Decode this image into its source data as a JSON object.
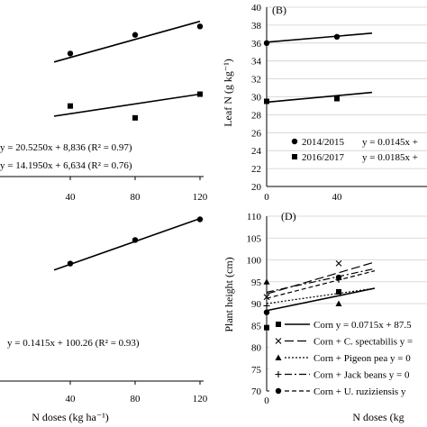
{
  "colors": {
    "ink": "#000000",
    "background": "#ffffff"
  },
  "chart_data": [
    {
      "panel": "top-left",
      "type": "scatter",
      "title": "",
      "xlabel": "",
      "ylabel": "",
      "xlim": [
        0,
        120
      ],
      "ylim": [
        0,
        40
      ],
      "x_ticks": [
        40,
        80,
        120
      ],
      "grid": false,
      "series": [
        {
          "marker": "circle",
          "x": [
            40,
            80,
            120
          ],
          "y": [
            37.0,
            38.1,
            38.6
          ],
          "fit": {
            "x": [
              30,
              120
            ],
            "y": [
              36.5,
              38.9
            ]
          }
        },
        {
          "marker": "square",
          "x": [
            40,
            80,
            120
          ],
          "y": [
            33.9,
            33.2,
            34.6
          ],
          "fit": {
            "x": [
              30,
              120
            ],
            "y": [
              33.3,
              34.6
            ]
          }
        }
      ],
      "annotations": [
        "y = 20.5250x + 8,836 (R² = 0.97)",
        "y = 14.1950x + 6,634 (R² = 0.76)"
      ]
    },
    {
      "panel": "top-right",
      "type": "scatter",
      "panel_label": "(B)",
      "xlabel": "",
      "ylabel": "Leaf N (g kg⁻¹)",
      "xlim": [
        0,
        40
      ],
      "ylim": [
        20,
        40
      ],
      "x_ticks": [
        0,
        40
      ],
      "y_ticks": [
        20,
        22,
        24,
        26,
        28,
        30,
        32,
        34,
        36,
        38,
        40
      ],
      "grid": true,
      "series": [
        {
          "name": "2014/2015",
          "marker": "circle",
          "x": [
            0,
            40
          ],
          "y": [
            36.0,
            36.7
          ],
          "fit": {
            "x": [
              0,
              60
            ],
            "y": [
              36.1,
              37.1
            ]
          }
        },
        {
          "name": "2016/2017",
          "marker": "square",
          "x": [
            0,
            40
          ],
          "y": [
            29.5,
            29.8
          ],
          "fit": {
            "x": [
              0,
              60
            ],
            "y": [
              29.4,
              30.5
            ]
          }
        }
      ],
      "legend_equations": [
        "y = 0.0145x +",
        "y = 0.0185x +"
      ],
      "legend_placement": "bottom"
    },
    {
      "panel": "bottom-left",
      "type": "scatter",
      "xlabel": "N doses (kg ha⁻¹)",
      "ylabel": "",
      "xlim": [
        0,
        120
      ],
      "x_ticks": [
        40,
        80,
        120
      ],
      "grid": false,
      "series": [
        {
          "marker": "circle",
          "x": [
            40,
            80,
            120
          ],
          "y": [
            106.1,
            111.9,
            117.0
          ],
          "fit": {
            "x": [
              30,
              120
            ],
            "y": [
              104.5,
              117.2
            ]
          }
        }
      ],
      "annotations": [
        "y = 0.1415x + 100.26 (R² = 0.93)"
      ]
    },
    {
      "panel": "bottom-right",
      "type": "scatter",
      "panel_label": "(D)",
      "xlabel": "N doses (kg",
      "ylabel": "Plant height (cm)",
      "xlim": [
        0,
        40
      ],
      "ylim": [
        70,
        110
      ],
      "x_ticks": [
        0,
        40
      ],
      "y_ticks": [
        70,
        75,
        80,
        85,
        90,
        95,
        100,
        105,
        110
      ],
      "grid": true,
      "series": [
        {
          "name": "Corn",
          "marker": "square",
          "equation": "y = 0.0715x + 87.5",
          "x": [
            0,
            40
          ],
          "y": [
            84.5,
            92.7
          ]
        },
        {
          "name": "Corn + C. spectabilis",
          "marker": "x",
          "equation": "y =",
          "x": [
            0,
            40
          ],
          "y": [
            91.5,
            99.2
          ]
        },
        {
          "name": "Corn + Pigeon pea",
          "marker": "triangle",
          "equation": "y = 0",
          "x": [
            0,
            40
          ],
          "y": [
            95.0,
            90.0
          ]
        },
        {
          "name": "Corn + Jack beans",
          "marker": "plus",
          "equation": "y = 0",
          "x": [
            0,
            40
          ],
          "y": [
            89.5,
            95.5
          ]
        },
        {
          "name": "Corn + U. ruziziensis",
          "marker": "circle",
          "equation": "y",
          "x": [
            0,
            40
          ],
          "y": [
            88.0,
            96.0
          ]
        }
      ],
      "legend_placement": "bottom"
    }
  ]
}
